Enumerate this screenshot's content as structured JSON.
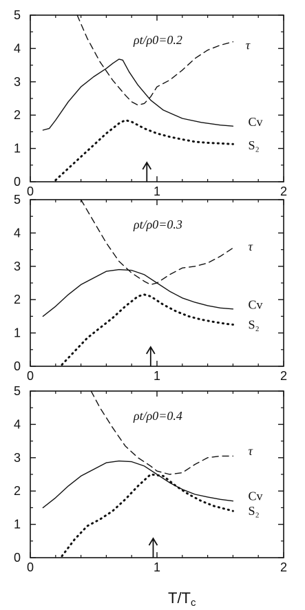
{
  "chart_data": [
    {
      "type": "line",
      "title": "ρt/ρ0=0.2",
      "xlim": [
        0,
        2
      ],
      "ylim": [
        0,
        5
      ],
      "x_ticks": [
        "0",
        "1",
        "2"
      ],
      "y_ticks": [
        "0",
        "1",
        "2",
        "3",
        "4",
        "5"
      ],
      "arrow_x": 0.92,
      "series": [
        {
          "name": "τ",
          "style": "dashed",
          "label_at": [
            1.7,
            4.1
          ],
          "x": [
            0.37,
            0.45,
            0.55,
            0.65,
            0.75,
            0.8,
            0.85,
            0.9,
            0.95,
            1.0,
            1.1,
            1.2,
            1.3,
            1.4,
            1.5,
            1.6
          ],
          "y": [
            5.0,
            4.3,
            3.6,
            3.05,
            2.6,
            2.4,
            2.3,
            2.35,
            2.55,
            2.85,
            3.05,
            3.35,
            3.7,
            3.95,
            4.1,
            4.2
          ]
        },
        {
          "name": "Cv",
          "style": "solid",
          "label_at": [
            1.72,
            1.8
          ],
          "x": [
            0.1,
            0.15,
            0.2,
            0.3,
            0.4,
            0.5,
            0.6,
            0.65,
            0.7,
            0.73,
            0.78,
            0.85,
            0.95,
            1.05,
            1.2,
            1.35,
            1.5,
            1.6
          ],
          "y": [
            1.55,
            1.6,
            1.85,
            2.4,
            2.85,
            3.15,
            3.4,
            3.55,
            3.68,
            3.65,
            3.3,
            2.9,
            2.45,
            2.15,
            1.9,
            1.78,
            1.7,
            1.67
          ]
        },
        {
          "name": "S₂",
          "style": "dotted",
          "label_at": [
            1.72,
            1.1
          ],
          "x": [
            0.2,
            0.3,
            0.4,
            0.5,
            0.6,
            0.7,
            0.75,
            0.8,
            0.9,
            1.0,
            1.1,
            1.2,
            1.3,
            1.4,
            1.5,
            1.6
          ],
          "y": [
            0.05,
            0.4,
            0.75,
            1.1,
            1.45,
            1.75,
            1.85,
            1.8,
            1.6,
            1.45,
            1.35,
            1.27,
            1.2,
            1.17,
            1.15,
            1.13
          ]
        }
      ]
    },
    {
      "type": "line",
      "title": "ρt/ρ0=0.3",
      "xlim": [
        0,
        2
      ],
      "ylim": [
        0,
        5
      ],
      "x_ticks": [
        "0",
        "1",
        "2"
      ],
      "y_ticks": [
        "0",
        "1",
        "2",
        "3",
        "4",
        "5"
      ],
      "arrow_x": 0.95,
      "series": [
        {
          "name": "τ",
          "style": "dashed",
          "label_at": [
            1.72,
            3.6
          ],
          "x": [
            0.4,
            0.5,
            0.6,
            0.7,
            0.8,
            0.9,
            0.95,
            1.0,
            1.1,
            1.2,
            1.3,
            1.4,
            1.5,
            1.6
          ],
          "y": [
            5.0,
            4.35,
            3.7,
            3.15,
            2.8,
            2.55,
            2.45,
            2.5,
            2.75,
            2.95,
            3.0,
            3.1,
            3.3,
            3.55
          ]
        },
        {
          "name": "Cv",
          "style": "solid",
          "label_at": [
            1.72,
            1.85
          ],
          "x": [
            0.1,
            0.2,
            0.3,
            0.4,
            0.5,
            0.6,
            0.7,
            0.8,
            0.9,
            1.0,
            1.1,
            1.2,
            1.3,
            1.4,
            1.5,
            1.6
          ],
          "y": [
            1.5,
            1.8,
            2.15,
            2.45,
            2.65,
            2.85,
            2.9,
            2.88,
            2.75,
            2.5,
            2.25,
            2.05,
            1.92,
            1.82,
            1.75,
            1.72
          ]
        },
        {
          "name": "S₂",
          "style": "dotted",
          "label_at": [
            1.72,
            1.25
          ],
          "x": [
            0.25,
            0.35,
            0.45,
            0.55,
            0.65,
            0.75,
            0.85,
            0.9,
            0.95,
            1.05,
            1.15,
            1.25,
            1.35,
            1.45,
            1.55,
            1.6
          ],
          "y": [
            0.05,
            0.45,
            0.85,
            1.15,
            1.45,
            1.8,
            2.1,
            2.15,
            2.1,
            1.85,
            1.65,
            1.5,
            1.4,
            1.33,
            1.27,
            1.25
          ]
        }
      ]
    },
    {
      "type": "line",
      "title": "ρt/ρ0=0.4",
      "xlim": [
        0,
        2
      ],
      "ylim": [
        0,
        5
      ],
      "x_ticks": [
        "0",
        "1",
        "2"
      ],
      "y_ticks": [
        "0",
        "1",
        "2",
        "3",
        "4",
        "5"
      ],
      "arrow_x": 0.97,
      "series": [
        {
          "name": "τ",
          "style": "dashed",
          "label_at": [
            1.72,
            3.2
          ],
          "x": [
            0.48,
            0.55,
            0.65,
            0.75,
            0.85,
            0.95,
            1.0,
            1.05,
            1.1,
            1.2,
            1.3,
            1.4,
            1.5,
            1.6
          ],
          "y": [
            5.0,
            4.5,
            3.9,
            3.35,
            3.0,
            2.75,
            2.6,
            2.55,
            2.5,
            2.55,
            2.8,
            3.0,
            3.05,
            3.05
          ]
        },
        {
          "name": "Cv",
          "style": "solid",
          "label_at": [
            1.72,
            1.85
          ],
          "x": [
            0.1,
            0.2,
            0.3,
            0.4,
            0.5,
            0.6,
            0.7,
            0.8,
            0.9,
            1.0,
            1.1,
            1.2,
            1.3,
            1.4,
            1.5,
            1.6
          ],
          "y": [
            1.5,
            1.8,
            2.15,
            2.45,
            2.65,
            2.85,
            2.9,
            2.88,
            2.75,
            2.5,
            2.25,
            2.05,
            1.9,
            1.82,
            1.75,
            1.7
          ]
        },
        {
          "name": "S₂",
          "style": "dotted",
          "label_at": [
            1.72,
            1.4
          ],
          "x": [
            0.25,
            0.35,
            0.45,
            0.55,
            0.65,
            0.75,
            0.85,
            0.95,
            1.05,
            1.15,
            1.25,
            1.35,
            1.45,
            1.55,
            1.6
          ],
          "y": [
            0.05,
            0.55,
            0.95,
            1.15,
            1.4,
            1.75,
            2.15,
            2.5,
            2.45,
            2.15,
            1.9,
            1.7,
            1.55,
            1.45,
            1.4
          ]
        }
      ]
    }
  ],
  "xlabel": "T/T",
  "xlabel_sub": "c"
}
